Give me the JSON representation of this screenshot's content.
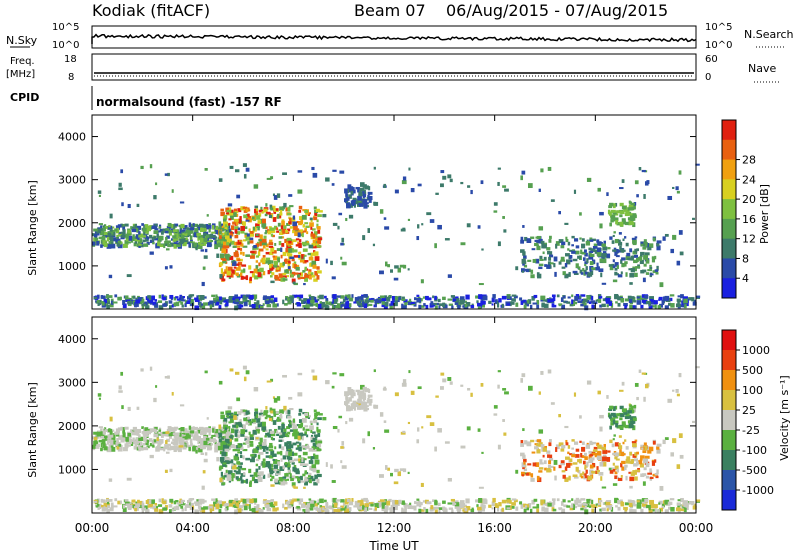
{
  "header": {
    "station": "Kodiak (fitACF)",
    "beam": "Beam 07",
    "date_range": "06/Aug/2015 - 07/Aug/2015"
  },
  "aux": {
    "nsky_label": "N.Sky",
    "nsearch_label": "N.Search",
    "freq_label": "Freq.",
    "freq_unit": "[MHz]",
    "nave_label": "Nave",
    "cpid_label": "CPID",
    "cpid_value": "normalsound (fast) -157 RF",
    "noise_ticks_left": [
      "10^5",
      "10^0"
    ],
    "noise_ticks_right": [
      "10^5",
      "10^0"
    ],
    "freq_ticks": [
      "18",
      "8"
    ],
    "nave_ticks": [
      "60",
      "0"
    ]
  },
  "colorbars": {
    "power": {
      "label": "Power [dB]",
      "ticks": [
        "4",
        "8",
        "12",
        "16",
        "20",
        "24",
        "28"
      ],
      "colors": [
        "#1a20e0",
        "#2a4aa8",
        "#3d7a6a",
        "#56a050",
        "#7ec040",
        "#d8d020",
        "#f0a010",
        "#e86010",
        "#e02010"
      ]
    },
    "velocity": {
      "label": "Velocity [m s⁻¹]",
      "ticks": [
        "1000",
        "500",
        "100",
        "25",
        "-25",
        "-100",
        "-500",
        "-1000"
      ],
      "colors": [
        "#1a2ad8",
        "#2b55a8",
        "#3a8060",
        "#5ab040",
        "#c8c8c0",
        "#d8c040",
        "#f09010",
        "#e84010",
        "#e01010"
      ]
    }
  },
  "chart_data": [
    {
      "type": "heatmap",
      "title": "Power",
      "ylabel": "Slant Range [km]",
      "xlabel": "",
      "ylim": [
        0,
        4500
      ],
      "y_ticks": [
        "1000",
        "2000",
        "3000",
        "4000"
      ],
      "x_ticks": [
        "00:00",
        "04:00",
        "08:00",
        "12:00",
        "16:00",
        "20:00",
        "00:00"
      ],
      "x_range_hours": [
        0,
        24
      ]
    },
    {
      "type": "heatmap",
      "title": "Velocity",
      "ylabel": "Slant Range [km]",
      "xlabel": "Time UT",
      "ylim": [
        0,
        4500
      ],
      "y_ticks": [
        "1000",
        "2000",
        "3000",
        "4000"
      ],
      "x_ticks": [
        "00:00",
        "04:00",
        "08:00",
        "12:00",
        "16:00",
        "20:00",
        "00:00"
      ],
      "x_range_hours": [
        0,
        24
      ]
    }
  ]
}
